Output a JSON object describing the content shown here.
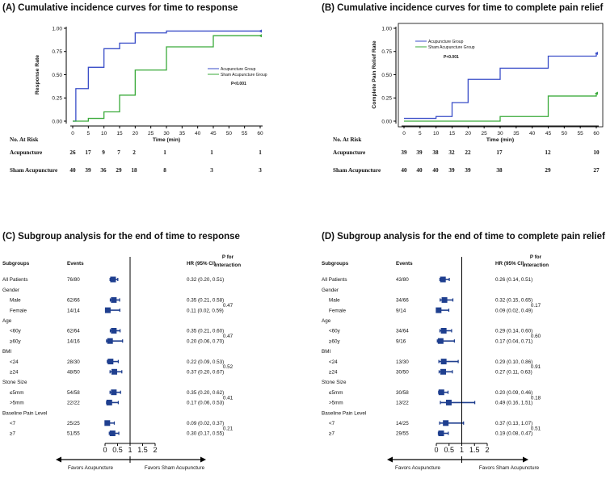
{
  "colors": {
    "acupuncture": "#3a4ec8",
    "sham": "#3aaa3a",
    "forest": "#1f3f8f"
  },
  "panelA": {
    "title": "(A) Cumulative incidence curves for time to response",
    "ylabel": "Response Rate",
    "xlabel": "Time (min)",
    "legend": [
      "Acupuncture Group",
      "Sham Acupuncture Group"
    ],
    "pvalue": "P<0.001",
    "risk_title": "No. At Risk",
    "risk_rows": [
      {
        "label": "Acupuncture",
        "values": [
          "26",
          "17",
          "9",
          "7",
          "2",
          "1",
          "1",
          "1"
        ]
      },
      {
        "label": "Sham Acupuncture",
        "values": [
          "40",
          "39",
          "36",
          "29",
          "18",
          "8",
          "3",
          "3"
        ]
      }
    ]
  },
  "panelB": {
    "title": "(B) Cumulative incidence curves for time to complete pain relief",
    "ylabel": "Complete Pain Relief Rate",
    "xlabel": "Time (min)",
    "legend": [
      "Acupuncture Group",
      "Sham Acupuncture Group"
    ],
    "pvalue": "P<0.001",
    "risk_title": "No. At Risk",
    "risk_rows": [
      {
        "label": "Acupuncture",
        "values": [
          "39",
          "39",
          "38",
          "32",
          "22",
          "17",
          "12",
          "10"
        ]
      },
      {
        "label": "Sham Acupuncture",
        "values": [
          "40",
          "40",
          "40",
          "39",
          "39",
          "38",
          "29",
          "27"
        ]
      }
    ]
  },
  "panelC": {
    "title": "(C) Subgroup analysis for the end of time to response",
    "headers": {
      "subgroups": "Subgroups",
      "events": "Events",
      "hr": "HR (95% CI)",
      "p1": "P for",
      "p2": "interaction"
    },
    "favors_left": "Favors Acupuncture",
    "favors_right": "Favors Sham Acupuncture",
    "axis_ticks": [
      "0",
      "0.5",
      "1",
      "1.5",
      "2"
    ],
    "rows": [
      {
        "label": "All Patients",
        "indent": false,
        "events": "76/80",
        "hr": "0.32 (0.20, 0.51)",
        "est": 0.32,
        "lo": 0.2,
        "hi": 0.51
      },
      {
        "label": "Gender",
        "indent": false
      },
      {
        "label": "Male",
        "indent": true,
        "events": "62/66",
        "hr": "0.35 (0.21, 0.58)",
        "est": 0.35,
        "lo": 0.21,
        "hi": 0.58
      },
      {
        "label": "Female",
        "indent": true,
        "events": "14/14",
        "hr": "0.11 (0.02, 0.59)",
        "est": 0.11,
        "lo": 0.02,
        "hi": 0.59
      },
      {
        "label": "Age",
        "indent": false
      },
      {
        "label": "<60y",
        "indent": true,
        "events": "62/64",
        "hr": "0.35 (0.21, 0.60)",
        "est": 0.35,
        "lo": 0.21,
        "hi": 0.6
      },
      {
        "label": "≥60y",
        "indent": true,
        "events": "14/16",
        "hr": "0.20 (0.06, 0.70)",
        "est": 0.2,
        "lo": 0.06,
        "hi": 0.7
      },
      {
        "label": "BMI",
        "indent": false
      },
      {
        "label": "<24",
        "indent": true,
        "events": "28/30",
        "hr": "0.22 (0.09, 0.53)",
        "est": 0.22,
        "lo": 0.09,
        "hi": 0.53
      },
      {
        "label": "≥24",
        "indent": true,
        "events": "48/50",
        "hr": "0.37 (0.20, 0.67)",
        "est": 0.37,
        "lo": 0.2,
        "hi": 0.67
      },
      {
        "label": "Stone Size",
        "indent": false
      },
      {
        "label": "≤5mm",
        "indent": true,
        "events": "54/58",
        "hr": "0.35 (0.20, 0.62)",
        "est": 0.35,
        "lo": 0.2,
        "hi": 0.62
      },
      {
        "label": ">5mm",
        "indent": true,
        "events": "22/22",
        "hr": "0.17 (0.06, 0.53)",
        "est": 0.17,
        "lo": 0.06,
        "hi": 0.53
      },
      {
        "label": "Baseline Pain Level",
        "indent": false
      },
      {
        "label": "<7",
        "indent": true,
        "events": "25/25",
        "hr": "0.09 (0.02, 0.37)",
        "est": 0.09,
        "lo": 0.02,
        "hi": 0.37
      },
      {
        "label": "≥7",
        "indent": true,
        "events": "51/55",
        "hr": "0.30 (0.17, 0.55)",
        "est": 0.3,
        "lo": 0.17,
        "hi": 0.55
      }
    ],
    "pvalues": [
      {
        "value": "0.47",
        "rows": [
          2,
          3
        ]
      },
      {
        "value": "0.47",
        "rows": [
          5,
          6
        ]
      },
      {
        "value": "0.52",
        "rows": [
          8,
          9
        ]
      },
      {
        "value": "0.41",
        "rows": [
          11,
          12
        ]
      },
      {
        "value": "0.21",
        "rows": [
          14,
          15
        ]
      }
    ]
  },
  "panelD": {
    "title": "(D) Subgroup analysis for the end of time to complete pain relief",
    "headers": {
      "subgroups": "Subgroups",
      "events": "Events",
      "hr": "HR (95% CI)",
      "p1": "P for",
      "p2": "interaction"
    },
    "favors_left": "Favors Acupuncture",
    "favors_right": "Favors Sham Acupuncture",
    "axis_ticks": [
      "0",
      "0.5",
      "1",
      "1.5",
      "2"
    ],
    "rows": [
      {
        "label": "All Patients",
        "indent": false,
        "events": "43/80",
        "hr": "0.26 (0.14, 0.51)",
        "est": 0.26,
        "lo": 0.14,
        "hi": 0.51
      },
      {
        "label": "Gender",
        "indent": false
      },
      {
        "label": "Male",
        "indent": true,
        "events": "34/66",
        "hr": "0.32 (0.15, 0.65)",
        "est": 0.32,
        "lo": 0.15,
        "hi": 0.65
      },
      {
        "label": "Female",
        "indent": true,
        "events": "9/14",
        "hr": "0.09 (0.02, 0.49)",
        "est": 0.09,
        "lo": 0.02,
        "hi": 0.49
      },
      {
        "label": "Age",
        "indent": false
      },
      {
        "label": "<60y",
        "indent": true,
        "events": "34/64",
        "hr": "0.29 (0.14, 0.60)",
        "est": 0.29,
        "lo": 0.14,
        "hi": 0.6
      },
      {
        "label": "≥60y",
        "indent": true,
        "events": "9/16",
        "hr": "0.17 (0.04, 0.71)",
        "est": 0.17,
        "lo": 0.04,
        "hi": 0.71
      },
      {
        "label": "BMI",
        "indent": false
      },
      {
        "label": "<24",
        "indent": true,
        "events": "13/30",
        "hr": "0.29 (0.10, 0.86)",
        "est": 0.29,
        "lo": 0.1,
        "hi": 0.86
      },
      {
        "label": "≥24",
        "indent": true,
        "events": "30/50",
        "hr": "0.27 (0.11, 0.63)",
        "est": 0.27,
        "lo": 0.11,
        "hi": 0.63
      },
      {
        "label": "Stone Size",
        "indent": false
      },
      {
        "label": "≤5mm",
        "indent": true,
        "events": "30/58",
        "hr": "0.20 (0.09, 0.46)",
        "est": 0.2,
        "lo": 0.09,
        "hi": 0.46
      },
      {
        "label": ">5mm",
        "indent": true,
        "events": "13/22",
        "hr": "0.49 (0.16, 1.51)",
        "est": 0.49,
        "lo": 0.16,
        "hi": 1.51
      },
      {
        "label": "Baseline Pain Level",
        "indent": false
      },
      {
        "label": "<7",
        "indent": true,
        "events": "14/25",
        "hr": "0.37 (0.13, 1.07)",
        "est": 0.37,
        "lo": 0.13,
        "hi": 1.07
      },
      {
        "label": "≥7",
        "indent": true,
        "events": "29/55",
        "hr": "0.19 (0.08, 0.47)",
        "est": 0.19,
        "lo": 0.08,
        "hi": 0.47
      }
    ],
    "pvalues": [
      {
        "value": "0.17",
        "rows": [
          2,
          3
        ]
      },
      {
        "value": "0.60",
        "rows": [
          5,
          6
        ]
      },
      {
        "value": "0.91",
        "rows": [
          8,
          9
        ]
      },
      {
        "value": "0.18",
        "rows": [
          11,
          12
        ]
      },
      {
        "value": "0.51",
        "rows": [
          14,
          15
        ]
      }
    ]
  },
  "chart_data": [
    {
      "type": "line",
      "step": true,
      "title": "(A) Cumulative incidence curves for time to response",
      "xlabel": "Time (min)",
      "ylabel": "Response Rate",
      "xlim": [
        0,
        60
      ],
      "ylim": [
        0,
        1.0
      ],
      "xticks": [
        0,
        5,
        10,
        15,
        20,
        25,
        30,
        35,
        40,
        45,
        50,
        55,
        60
      ],
      "yticks": [
        0.0,
        0.25,
        0.5,
        0.75,
        1.0
      ],
      "series": [
        {
          "name": "Acupuncture Group",
          "x": [
            0,
            1,
            5,
            10,
            15,
            20,
            30,
            60
          ],
          "y": [
            0,
            0.35,
            0.58,
            0.78,
            0.84,
            0.95,
            0.97,
            0.97
          ]
        },
        {
          "name": "Sham Acupuncture Group",
          "x": [
            0,
            5,
            10,
            15,
            20,
            30,
            45,
            60
          ],
          "y": [
            0,
            0.03,
            0.1,
            0.28,
            0.55,
            0.8,
            0.92,
            0.92
          ]
        }
      ],
      "annotation": "P<0.001"
    },
    {
      "type": "line",
      "step": true,
      "title": "(B) Cumulative incidence curves for time to complete pain relief",
      "xlabel": "Time (min)",
      "ylabel": "Complete Pain Relief Rate",
      "xlim": [
        0,
        60
      ],
      "ylim": [
        0,
        1.0
      ],
      "xticks": [
        0,
        5,
        10,
        15,
        20,
        25,
        30,
        35,
        40,
        45,
        50,
        55,
        60
      ],
      "yticks": [
        0.0,
        0.25,
        0.5,
        0.75,
        1.0
      ],
      "series": [
        {
          "name": "Acupuncture Group",
          "x": [
            0,
            10,
            15,
            20,
            30,
            45,
            60
          ],
          "y": [
            0.03,
            0.05,
            0.2,
            0.45,
            0.57,
            0.7,
            0.73
          ]
        },
        {
          "name": "Sham Acupuncture Group",
          "x": [
            0,
            30,
            45,
            60
          ],
          "y": [
            0,
            0.05,
            0.27,
            0.3
          ]
        }
      ],
      "annotation": "P<0.001"
    },
    {
      "type": "forest",
      "title": "(C) Subgroup analysis for the end of time to response",
      "xlim": [
        0,
        2
      ],
      "reference": 1
    },
    {
      "type": "forest",
      "title": "(D) Subgroup analysis for the end of time to complete pain relief",
      "xlim": [
        0,
        2
      ],
      "reference": 1
    }
  ]
}
